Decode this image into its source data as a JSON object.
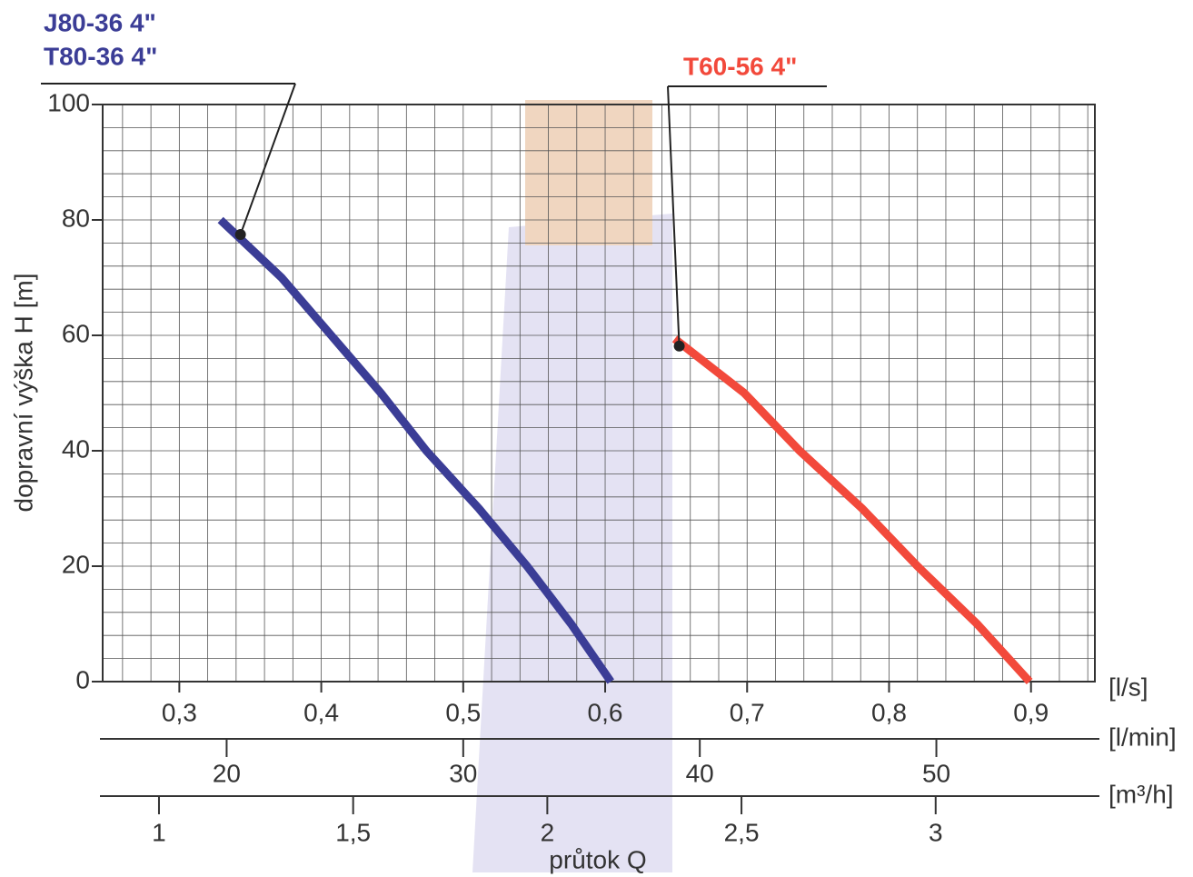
{
  "chart_data": {
    "type": "line",
    "x_label": "průtok Q",
    "y_label": "dopravní výška H [m]",
    "x_unit": "[l/s]",
    "xlim": [
      0.246,
      0.945
    ],
    "xticks": [
      {
        "value": 0.3,
        "label": "0,3"
      },
      {
        "value": 0.4,
        "label": "0,4"
      },
      {
        "value": 0.5,
        "label": "0,5"
      },
      {
        "value": 0.6,
        "label": "0,6"
      },
      {
        "value": 0.7,
        "label": "0,7"
      },
      {
        "value": 0.8,
        "label": "0,8"
      },
      {
        "value": 0.9,
        "label": "0,9"
      }
    ],
    "ylim": [
      0,
      100
    ],
    "yticks": [
      0,
      20,
      40,
      60,
      80,
      100
    ],
    "grid": true,
    "secondary_axes": [
      {
        "unit": "[l/min]",
        "xlim": [
          14.76,
          56.7
        ],
        "xticks": [
          20,
          30,
          40,
          50
        ]
      },
      {
        "unit": "[m³/h]",
        "xlim": [
          0.855,
          3.41
        ],
        "xticks": [
          1,
          {
            "value": 1.5,
            "label": "1,5"
          },
          2,
          {
            "value": 2.5,
            "label": "2,5"
          },
          3
        ]
      }
    ],
    "series": [
      {
        "labels": [
          "J80-36 4\"",
          "T80-36 4\""
        ],
        "color": "#3b3d96",
        "x": [
          0.329,
          0.372,
          0.407,
          0.442,
          0.474,
          0.511,
          0.545,
          0.576,
          0.604
        ],
        "values": [
          80,
          70,
          60,
          50,
          40,
          30,
          20,
          10,
          0
        ]
      },
      {
        "labels": [
          "T60-56 4\""
        ],
        "color": "#f2493b",
        "x": [
          0.649,
          0.698,
          0.737,
          0.781,
          0.82,
          0.862,
          0.899
        ],
        "values": [
          59.4,
          50,
          40,
          30,
          20,
          10,
          0
        ]
      }
    ]
  }
}
